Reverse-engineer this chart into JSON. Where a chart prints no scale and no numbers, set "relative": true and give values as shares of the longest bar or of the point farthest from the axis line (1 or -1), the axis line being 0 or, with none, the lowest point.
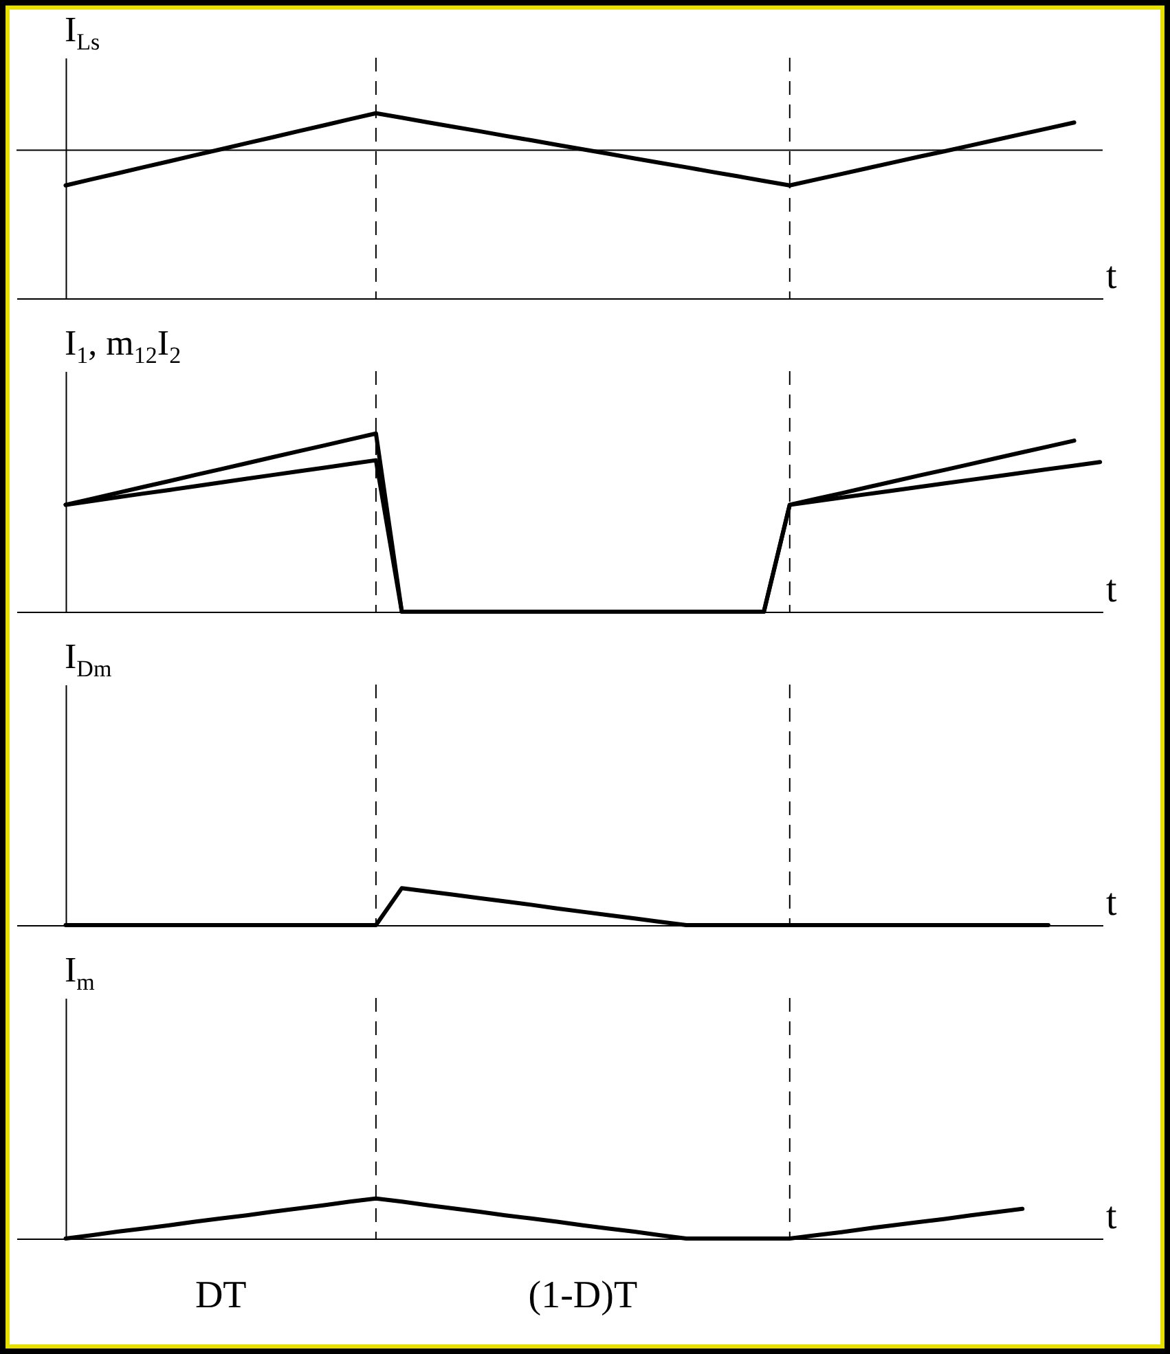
{
  "chart_data": [
    {
      "type": "line",
      "ylabel": "I$_{Ls}$",
      "xlabel": "t",
      "relative": true,
      "categories": [
        null,
        null,
        null,
        null,
        null,
        null,
        null,
        null,
        null,
        null,
        null,
        null,
        null,
        null,
        null,
        null,
        null,
        null,
        null,
        null,
        null,
        null,
        null,
        null,
        null,
        null,
        null,
        null,
        null,
        null,
        null,
        null,
        null,
        null,
        null,
        null,
        null,
        null,
        null,
        null,
        null
      ],
      "series": [
        {
          "color": "#000000",
          "values": [
            0.61,
            0.643,
            0.675,
            0.708,
            0.74,
            0.773,
            0.805,
            0.838,
            0.87,
            0.903,
            0.935,
            0.968,
            1,
            0.976,
            0.951,
            0.927,
            0.903,
            0.878,
            0.854,
            0.829,
            0.805,
            0.781,
            0.756,
            0.732,
            0.708,
            0.683,
            0.659,
            0.634,
            0.61,
            0.641,
            0.672,
            0.703,
            0.734,
            0.765,
            0.795,
            0.826,
            0.857,
            0.888,
            0.919,
            0.95,
            null
          ]
        }
      ],
      "ref_lines": [
        {
          "axis": "y",
          "value": 0.8,
          "color": "#000000"
        }
      ]
    },
    {
      "type": "line",
      "ylabel": "I$_{1}$, m$_{12}$I$_{2}$",
      "xlabel": "t",
      "relative": true,
      "categories": [
        null,
        null,
        null,
        null,
        null,
        null,
        null,
        null,
        null,
        null,
        null,
        null,
        null,
        null,
        null,
        null,
        null,
        null,
        null,
        null,
        null,
        null,
        null,
        null,
        null,
        null,
        null,
        null,
        null,
        null,
        null,
        null,
        null,
        null,
        null,
        null,
        null,
        null,
        null,
        null,
        null
      ],
      "series": [
        {
          "color": "#000000",
          "values": [
            0.6,
            0.633,
            0.667,
            0.7,
            0.733,
            0.767,
            0.8,
            0.833,
            0.867,
            0.9,
            0.933,
            0.967,
            1,
            0,
            0,
            0,
            0,
            0,
            0,
            0,
            0,
            0,
            0,
            0,
            0,
            0,
            0,
            0,
            0.6,
            0.633,
            0.665,
            0.698,
            0.731,
            0.764,
            0.796,
            0.829,
            0.862,
            0.895,
            0.927,
            0.96,
            null
          ]
        },
        {
          "color": "#000000",
          "values": [
            0.6,
            0.621,
            0.642,
            0.663,
            0.683,
            0.704,
            0.725,
            0.746,
            0.767,
            0.788,
            0.808,
            0.829,
            0.85,
            0,
            0,
            0,
            0,
            0,
            0,
            0,
            0,
            0,
            0,
            0,
            0,
            0,
            0,
            0,
            0.6,
            0.62,
            0.64,
            0.66,
            0.68,
            0.7,
            0.72,
            0.74,
            0.76,
            0.78,
            0.8,
            0.82,
            0.84
          ]
        }
      ]
    },
    {
      "type": "line",
      "ylabel": "I$_{Dm}$",
      "xlabel": "t",
      "relative": true,
      "categories": [
        null,
        null,
        null,
        null,
        null,
        null,
        null,
        null,
        null,
        null,
        null,
        null,
        null,
        null,
        null,
        null,
        null,
        null,
        null,
        null,
        null,
        null,
        null,
        null,
        null,
        null,
        null,
        null,
        null,
        null,
        null,
        null,
        null,
        null,
        null,
        null,
        null,
        null,
        null,
        null,
        null
      ],
      "series": [
        {
          "color": "#000000",
          "values": [
            0,
            0,
            0,
            0,
            0,
            0,
            0,
            0,
            0,
            0,
            0,
            0,
            0,
            1,
            0.91,
            0.82,
            0.73,
            0.64,
            0.55,
            0.45,
            0.36,
            0.27,
            0.18,
            0.09,
            0,
            0,
            0,
            0,
            0,
            0,
            0,
            0,
            0,
            0,
            0,
            0,
            0,
            0,
            0,
            null,
            null
          ]
        }
      ]
    },
    {
      "type": "line",
      "ylabel": "I$_{m}$",
      "xlabel": "t",
      "relative": true,
      "categories": [
        null,
        null,
        null,
        null,
        null,
        null,
        null,
        null,
        null,
        null,
        null,
        null,
        null,
        null,
        null,
        null,
        null,
        null,
        null,
        null,
        null,
        null,
        null,
        null,
        null,
        null,
        null,
        null,
        null,
        null,
        null,
        null,
        null,
        null,
        null,
        null,
        null,
        null,
        null,
        null,
        null
      ],
      "series": [
        {
          "color": "#000000",
          "values": [
            0,
            0.08,
            0.17,
            0.25,
            0.33,
            0.42,
            0.5,
            0.58,
            0.67,
            0.75,
            0.83,
            0.92,
            1,
            0.92,
            0.83,
            0.75,
            0.67,
            0.58,
            0.5,
            0.42,
            0.33,
            0.25,
            0.17,
            0.08,
            0,
            0,
            0,
            0,
            0,
            0.08,
            0.16,
            0.25,
            0.33,
            0.41,
            0.49,
            0.58,
            0.66,
            0.74,
            null,
            null,
            null
          ]
        }
      ],
      "annotations": [
        "DT",
        "(1-D)T"
      ]
    }
  ]
}
